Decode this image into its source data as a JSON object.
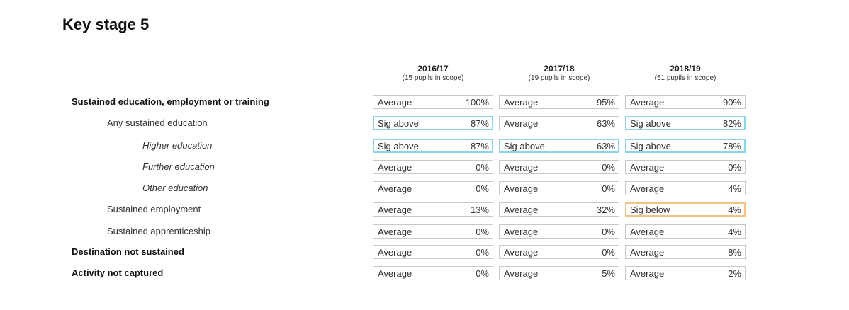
{
  "title": "Key stage 5",
  "years": [
    {
      "label": "2016/17",
      "scope": "(15 pupils in scope)"
    },
    {
      "label": "2017/18",
      "scope": "(19 pupils in scope)"
    },
    {
      "label": "2018/19",
      "scope": "(51 pupils in scope)"
    }
  ],
  "rows": [
    {
      "label": "Sustained education, employment or training",
      "style": "bold",
      "cells": [
        {
          "status": "Average",
          "value": "100%"
        },
        {
          "status": "Average",
          "value": "95%"
        },
        {
          "status": "Average",
          "value": "90%"
        }
      ]
    },
    {
      "label": "Any sustained education",
      "style": "normal",
      "cells": [
        {
          "status": "Sig above",
          "value": "87%"
        },
        {
          "status": "Average",
          "value": "63%"
        },
        {
          "status": "Sig above",
          "value": "82%"
        }
      ]
    },
    {
      "label": "Higher education",
      "style": "italic",
      "cells": [
        {
          "status": "Sig above",
          "value": "87%"
        },
        {
          "status": "Sig above",
          "value": "63%"
        },
        {
          "status": "Sig above",
          "value": "78%"
        }
      ]
    },
    {
      "label": "Further education",
      "style": "italic",
      "cells": [
        {
          "status": "Average",
          "value": "0%"
        },
        {
          "status": "Average",
          "value": "0%"
        },
        {
          "status": "Average",
          "value": "0%"
        }
      ]
    },
    {
      "label": "Other education",
      "style": "italic",
      "cells": [
        {
          "status": "Average",
          "value": "0%"
        },
        {
          "status": "Average",
          "value": "0%"
        },
        {
          "status": "Average",
          "value": "4%"
        }
      ]
    },
    {
      "label": "Sustained employment",
      "style": "normal",
      "cells": [
        {
          "status": "Average",
          "value": "13%"
        },
        {
          "status": "Average",
          "value": "32%"
        },
        {
          "status": "Sig below",
          "value": "4%"
        }
      ]
    },
    {
      "label": "Sustained apprenticeship",
      "style": "normal",
      "cells": [
        {
          "status": "Average",
          "value": "0%"
        },
        {
          "status": "Average",
          "value": "0%"
        },
        {
          "status": "Average",
          "value": "4%"
        }
      ]
    },
    {
      "label": "Destination not sustained",
      "style": "bold",
      "cells": [
        {
          "status": "Average",
          "value": "0%"
        },
        {
          "status": "Average",
          "value": "0%"
        },
        {
          "status": "Average",
          "value": "8%"
        }
      ]
    },
    {
      "label": "Activity not captured",
      "style": "bold",
      "cells": [
        {
          "status": "Average",
          "value": "0%"
        },
        {
          "status": "Average",
          "value": "5%"
        },
        {
          "status": "Average",
          "value": "2%"
        }
      ]
    }
  ],
  "colors": {
    "sig_above_border": "#8fd3e8",
    "sig_below_border": "#f2c48a",
    "average_border": "#c8c8c8"
  }
}
